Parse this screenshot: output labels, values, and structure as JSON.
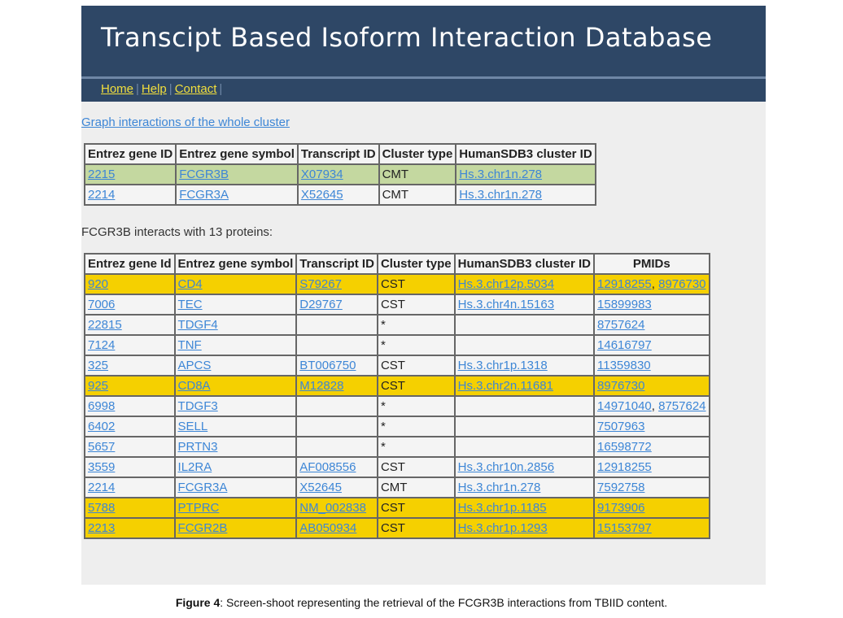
{
  "header": {
    "title": "Transcipt Based Isoform Interaction Database",
    "nav": [
      "Home",
      "Help",
      "Contact"
    ]
  },
  "graph_link": "Graph interactions of the whole cluster",
  "cluster_table": {
    "headers": [
      "Entrez gene ID",
      "Entrez gene symbol",
      "Transcript ID",
      "Cluster type",
      "HumanSDB3 cluster ID"
    ],
    "rows": [
      {
        "highlight": "green",
        "cells": [
          "2215",
          "FCGR3B",
          "X07934",
          "CMT",
          "Hs.3.chr1n.278"
        ]
      },
      {
        "highlight": "plain",
        "cells": [
          "2214",
          "FCGR3A",
          "X52645",
          "CMT",
          "Hs.3.chr1n.278"
        ]
      }
    ]
  },
  "interaction_summary": "FCGR3B interacts with 13 proteins:",
  "interactions_table": {
    "headers": [
      "Entrez gene Id",
      "Entrez gene symbol",
      "Transcript ID",
      "Cluster type",
      "HumanSDB3 cluster ID",
      "PMIDs"
    ],
    "rows": [
      {
        "highlight": "yellow",
        "gene_id": "920",
        "symbol": "CD4",
        "transcript": "S79267",
        "cluster_type": "CST",
        "cluster_id": "Hs.3.chr12p.5034",
        "pmids": [
          "12918255",
          "8976730"
        ]
      },
      {
        "highlight": "plain",
        "gene_id": "7006",
        "symbol": "TEC",
        "transcript": "D29767",
        "cluster_type": "CST",
        "cluster_id": "Hs.3.chr4n.15163",
        "pmids": [
          "15899983"
        ]
      },
      {
        "highlight": "plain",
        "gene_id": "22815",
        "symbol": "TDGF4",
        "transcript": "",
        "cluster_type": "*",
        "cluster_id": "",
        "pmids": [
          "8757624"
        ]
      },
      {
        "highlight": "plain",
        "gene_id": "7124",
        "symbol": "TNF",
        "transcript": "",
        "cluster_type": "*",
        "cluster_id": "",
        "pmids": [
          "14616797"
        ]
      },
      {
        "highlight": "plain",
        "gene_id": "325",
        "symbol": "APCS",
        "transcript": "BT006750",
        "cluster_type": "CST",
        "cluster_id": "Hs.3.chr1p.1318",
        "pmids": [
          "11359830"
        ]
      },
      {
        "highlight": "yellow",
        "gene_id": "925",
        "symbol": "CD8A",
        "transcript": "M12828",
        "cluster_type": "CST",
        "cluster_id": "Hs.3.chr2n.11681",
        "pmids": [
          "8976730"
        ]
      },
      {
        "highlight": "plain",
        "gene_id": "6998",
        "symbol": "TDGF3",
        "transcript": "",
        "cluster_type": "*",
        "cluster_id": "",
        "pmids": [
          "14971040",
          "8757624"
        ]
      },
      {
        "highlight": "plain",
        "gene_id": "6402",
        "symbol": "SELL",
        "transcript": "",
        "cluster_type": "*",
        "cluster_id": "",
        "pmids": [
          "7507963"
        ]
      },
      {
        "highlight": "plain",
        "gene_id": "5657",
        "symbol": "PRTN3",
        "transcript": "",
        "cluster_type": "*",
        "cluster_id": "",
        "pmids": [
          "16598772"
        ]
      },
      {
        "highlight": "plain",
        "gene_id": "3559",
        "symbol": "IL2RA",
        "transcript": "AF008556",
        "cluster_type": "CST",
        "cluster_id": "Hs.3.chr10n.2856",
        "pmids": [
          "12918255"
        ]
      },
      {
        "highlight": "plain",
        "gene_id": "2214",
        "symbol": "FCGR3A",
        "transcript": "X52645",
        "cluster_type": "CMT",
        "cluster_id": "Hs.3.chr1n.278",
        "pmids": [
          "7592758"
        ]
      },
      {
        "highlight": "yellow",
        "gene_id": "5788",
        "symbol": "PTPRC",
        "transcript": "NM_002838",
        "cluster_type": "CST",
        "cluster_id": "Hs.3.chr1p.1185",
        "pmids": [
          "9173906"
        ]
      },
      {
        "highlight": "yellow",
        "gene_id": "2213",
        "symbol": "FCGR2B",
        "transcript": "AB050934",
        "cluster_type": "CST",
        "cluster_id": "Hs.3.chr1p.1293",
        "pmids": [
          "15153797"
        ]
      }
    ]
  },
  "caption": {
    "label": "Figure 4",
    "text": ": Screen-shoot representing the retrieval of the FCGR3B interactions from TBIID content."
  },
  "colors": {
    "banner": "#2e4766",
    "nav_link": "#f2df3c",
    "link": "#3d86d6",
    "row_green": "#c4d8a0",
    "row_yellow": "#f5d000"
  }
}
